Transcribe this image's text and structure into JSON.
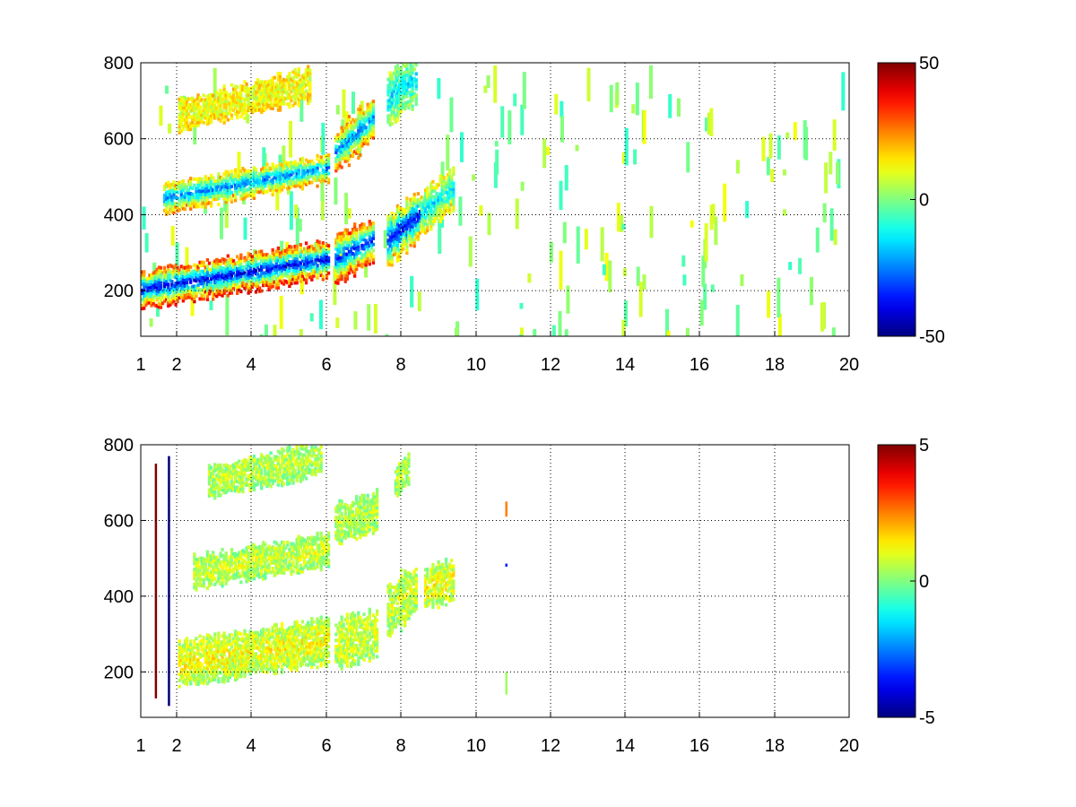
{
  "chart_data": [
    {
      "type": "heatmap",
      "title": "",
      "xlabel": "",
      "ylabel": "",
      "x_ticks": [
        "1",
        "2",
        "4",
        "6",
        "8",
        "10",
        "12",
        "14",
        "16",
        "18",
        "20"
      ],
      "y_ticks": [
        "200",
        "400",
        "600",
        "800"
      ],
      "xlim": [
        1,
        20
      ],
      "ylim": [
        80,
        800
      ],
      "grid": true,
      "colorbar": {
        "min": -50,
        "max": 50,
        "ticks": [
          "50",
          "0",
          "-50"
        ],
        "colormap": "jet"
      },
      "bands": [
        {
          "x_range": [
            1.0,
            6.0
          ],
          "y_center_start": 200,
          "y_center_end": 280,
          "half_width": 45,
          "value": -40,
          "edge_value": 35
        },
        {
          "x_range": [
            1.6,
            6.0
          ],
          "y_center_start": 440,
          "y_center_end": 520,
          "half_width": 35,
          "value": -25,
          "edge_value": 20
        },
        {
          "x_range": [
            2.0,
            5.5
          ],
          "y_center_start": 660,
          "y_center_end": 740,
          "half_width": 40,
          "value": 10,
          "edge_value": 15
        },
        {
          "x_range": [
            6.2,
            7.2
          ],
          "y_center_start": 280,
          "y_center_end": 330,
          "half_width": 60,
          "value": -35,
          "edge_value": 35
        },
        {
          "x_range": [
            6.2,
            7.2
          ],
          "y_center_start": 560,
          "y_center_end": 650,
          "half_width": 55,
          "value": -25,
          "edge_value": 25
        },
        {
          "x_range": [
            7.6,
            8.5
          ],
          "y_center_start": 330,
          "y_center_end": 400,
          "half_width": 60,
          "value": -40,
          "edge_value": 20
        },
        {
          "x_range": [
            7.6,
            8.4
          ],
          "y_center_start": 700,
          "y_center_end": 760,
          "half_width": 60,
          "value": -15,
          "edge_value": 5
        },
        {
          "x_range": [
            8.5,
            9.4
          ],
          "y_center_start": 400,
          "y_center_end": 470,
          "half_width": 50,
          "value": -15,
          "edge_value": 15
        }
      ],
      "sparse_values": [
        -8,
        12
      ]
    },
    {
      "type": "heatmap",
      "title": "",
      "xlabel": "",
      "ylabel": "",
      "x_ticks": [
        "1",
        "2",
        "4",
        "6",
        "8",
        "10",
        "12",
        "14",
        "16",
        "18",
        "20"
      ],
      "y_ticks": [
        "200",
        "400",
        "600",
        "800"
      ],
      "xlim": [
        1,
        20
      ],
      "ylim": [
        80,
        800
      ],
      "grid": true,
      "colorbar": {
        "min": -5,
        "max": 5,
        "ticks": [
          "5",
          "0",
          "-5"
        ],
        "colormap": "jet"
      },
      "bands": [
        {
          "x_range": [
            2.0,
            6.0
          ],
          "y_center_start": 220,
          "y_center_end": 280,
          "half_width": 55,
          "value": 1.2,
          "edge_value": 0.5
        },
        {
          "x_range": [
            2.4,
            6.0
          ],
          "y_center_start": 460,
          "y_center_end": 520,
          "half_width": 40,
          "value": 0.8,
          "edge_value": 0.3
        },
        {
          "x_range": [
            2.8,
            5.8
          ],
          "y_center_start": 700,
          "y_center_end": 760,
          "half_width": 40,
          "value": 0.6,
          "edge_value": 0.3
        },
        {
          "x_range": [
            6.2,
            7.3
          ],
          "y_center_start": 270,
          "y_center_end": 300,
          "half_width": 60,
          "value": 0.8,
          "edge_value": 0.5
        },
        {
          "x_range": [
            6.2,
            7.3
          ],
          "y_center_start": 590,
          "y_center_end": 620,
          "half_width": 50,
          "value": 0.6,
          "edge_value": 0.3
        },
        {
          "x_range": [
            7.6,
            8.4
          ],
          "y_center_start": 360,
          "y_center_end": 420,
          "half_width": 65,
          "value": 0.8,
          "edge_value": 0.4
        },
        {
          "x_range": [
            7.8,
            8.2
          ],
          "y_center_start": 700,
          "y_center_end": 740,
          "half_width": 40,
          "value": 0.5,
          "edge_value": 0.3
        },
        {
          "x_range": [
            8.6,
            9.4
          ],
          "y_center_start": 420,
          "y_center_end": 440,
          "half_width": 50,
          "value": 1.2,
          "edge_value": 0.5
        }
      ],
      "spikes": [
        {
          "x": 1.4,
          "y_range": [
            130,
            750
          ],
          "value": 5
        },
        {
          "x": 1.75,
          "y_range": [
            110,
            770
          ],
          "value": -5
        },
        {
          "x": 10.8,
          "y_range": [
            610,
            650
          ],
          "value": 2.5
        },
        {
          "x": 10.8,
          "y_range": [
            478,
            486
          ],
          "value": -3.5
        },
        {
          "x": 10.8,
          "y_range": [
            140,
            200
          ],
          "value": 0.3
        }
      ],
      "sparse_values": []
    }
  ]
}
